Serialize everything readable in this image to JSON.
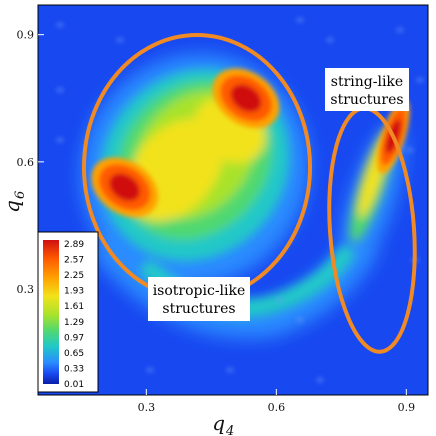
{
  "chart_data": {
    "type": "heatmap",
    "title": "",
    "xlabel": "q",
    "xlabel_sub": "4",
    "ylabel": "q",
    "ylabel_sub": "6",
    "xlim": [
      0.05,
      0.95
    ],
    "ylim": [
      0.05,
      0.97
    ],
    "xticks": [
      {
        "value": 0.3,
        "label": "0.3"
      },
      {
        "value": 0.6,
        "label": "0.6"
      },
      {
        "value": 0.9,
        "label": "0.9"
      }
    ],
    "yticks": [
      {
        "value": 0.3,
        "label": "0.3"
      },
      {
        "value": 0.6,
        "label": "0.6"
      },
      {
        "value": 0.9,
        "label": "0.9"
      }
    ],
    "colorbar": {
      "placement": "lower-left",
      "labels": [
        "2.89",
        "2.57",
        "2.25",
        "1.93",
        "1.61",
        "1.29",
        "0.97",
        "0.65",
        "0.33",
        "0.01"
      ],
      "colors": [
        "#d01010",
        "#ff5a00",
        "#ffa000",
        "#f2e21a",
        "#a8e22c",
        "#50d870",
        "#20c8c8",
        "#2a8cff",
        "#1848f0",
        "#0a1ea8"
      ]
    },
    "peaks": [
      {
        "q4": 0.53,
        "q6": 0.75,
        "value": 2.89
      },
      {
        "q4": 0.25,
        "q6": 0.54,
        "value": 2.57
      },
      {
        "q4": 0.87,
        "q6": 0.66,
        "value": 2.89
      }
    ],
    "annotations": [
      {
        "id": "isotropic",
        "lines": [
          "isotropic-like",
          "structures"
        ],
        "region_center": [
          0.43,
          0.63
        ]
      },
      {
        "id": "string",
        "lines": [
          "string-like",
          "structures"
        ],
        "region_center": [
          0.85,
          0.44
        ]
      }
    ],
    "region_color": "#f08a24",
    "background_color": "#1848f0"
  }
}
